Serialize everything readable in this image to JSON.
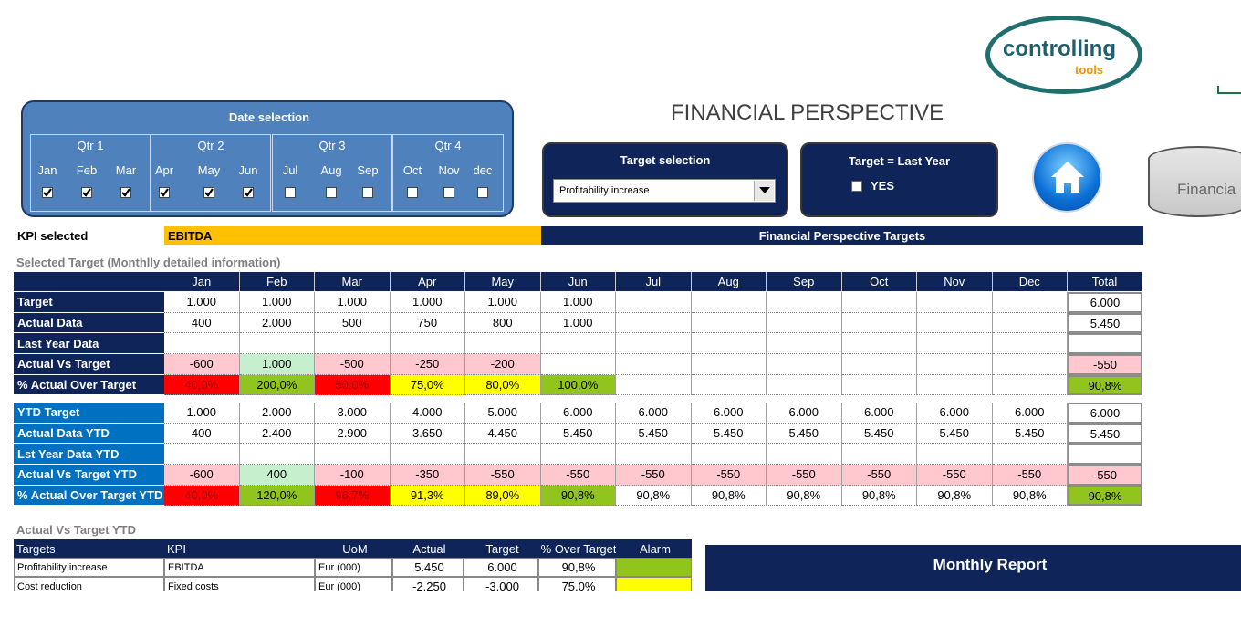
{
  "logo": {
    "name": "controlling",
    "sub": "tools"
  },
  "title": "FINANCIAL PERSPECTIVE",
  "date_selection": {
    "title": "Date selection",
    "quarters": [
      "Qtr 1",
      "Qtr 2",
      "Qtr 3",
      "Qtr 4"
    ],
    "months": [
      "Jan",
      "Feb",
      "Mar",
      "Apr",
      "May",
      "Jun",
      "Jul",
      "Aug",
      "Sep",
      "Oct",
      "Nov",
      "dec"
    ],
    "checked": [
      true,
      true,
      true,
      true,
      true,
      true,
      false,
      false,
      false,
      false,
      false,
      false
    ]
  },
  "target_selection": {
    "title": "Target selection",
    "value": "Profitability increase"
  },
  "last_year": {
    "title": "Target = Last Year",
    "option": "YES",
    "checked": false
  },
  "nav_button": "Financia",
  "kpi": {
    "label": "KPI selected",
    "value": "EBITDA",
    "header": "Financial Perspective Targets"
  },
  "monthly": {
    "title": "Selected Target (Monthlly detailed information)",
    "columns": [
      "Jan",
      "Feb",
      "Mar",
      "Apr",
      "May",
      "Jun",
      "Jul",
      "Aug",
      "Sep",
      "Oct",
      "Nov",
      "Dec",
      "Total"
    ],
    "sections": [
      {
        "color": "#0f2458",
        "rows": [
          {
            "label": "Target",
            "cells": [
              "1.000",
              "1.000",
              "1.000",
              "1.000",
              "1.000",
              "1.000",
              null,
              null,
              null,
              null,
              null,
              null,
              "6.000"
            ]
          },
          {
            "label": "Actual Data",
            "cells": [
              "400",
              "2.000",
              "500",
              "750",
              "800",
              "1.000",
              null,
              null,
              null,
              null,
              null,
              null,
              "5.450"
            ]
          },
          {
            "label": "Last Year Data",
            "cells": [
              null,
              null,
              null,
              null,
              null,
              null,
              null,
              null,
              null,
              null,
              null,
              null,
              null
            ]
          },
          {
            "label": "Actual Vs Target",
            "cells": [
              "-600",
              "1.000",
              "-500",
              "-250",
              "-200",
              null,
              null,
              null,
              null,
              null,
              null,
              null,
              "-550"
            ],
            "fills": [
              "#ffc7ce",
              "#c6efce",
              "#ffc7ce",
              "#ffc7ce",
              "#ffc7ce",
              null,
              null,
              null,
              null,
              null,
              null,
              null,
              "#ffc7ce"
            ]
          },
          {
            "label": "% Actual Over Target",
            "cells": [
              "40,0%",
              "200,0%",
              "50,0%",
              "75,0%",
              "80,0%",
              "100,0%",
              null,
              null,
              null,
              null,
              null,
              null,
              "90,8%"
            ],
            "fills": [
              "#ff0000",
              "#92c41e",
              "#ff0000",
              "#ffff00",
              "#ffff00",
              "#92c41e",
              null,
              null,
              null,
              null,
              null,
              null,
              "#92c41e"
            ]
          }
        ]
      },
      {
        "color": "#0070c0",
        "rows": [
          {
            "label": "YTD Target",
            "cells": [
              "1.000",
              "2.000",
              "3.000",
              "4.000",
              "5.000",
              "6.000",
              "6.000",
              "6.000",
              "6.000",
              "6.000",
              "6.000",
              "6.000",
              "6.000"
            ]
          },
          {
            "label": "Actual Data YTD",
            "cells": [
              "400",
              "2.400",
              "2.900",
              "3.650",
              "4.450",
              "5.450",
              "5.450",
              "5.450",
              "5.450",
              "5.450",
              "5.450",
              "5.450",
              "5.450"
            ]
          },
          {
            "label": "Lst Year Data YTD",
            "cells": [
              null,
              null,
              null,
              null,
              null,
              null,
              null,
              null,
              null,
              null,
              null,
              null,
              null
            ]
          },
          {
            "label": "Actual Vs Target YTD",
            "cells": [
              "-600",
              "400",
              "-100",
              "-350",
              "-550",
              "-550",
              "-550",
              "-550",
              "-550",
              "-550",
              "-550",
              "-550",
              "-550"
            ],
            "fills": [
              "#ffc7ce",
              "#c6efce",
              "#ffc7ce",
              "#ffc7ce",
              "#ffc7ce",
              "#ffc7ce",
              "#ffc7ce",
              "#ffc7ce",
              "#ffc7ce",
              "#ffc7ce",
              "#ffc7ce",
              "#ffc7ce",
              "#ffc7ce"
            ]
          },
          {
            "label": "% Actual Over Target YTD",
            "cells": [
              "40,0%",
              "120,0%",
              "96,7%",
              "91,3%",
              "89,0%",
              "90,8%",
              "90,8%",
              "90,8%",
              "90,8%",
              "90,8%",
              "90,8%",
              "90,8%",
              "90,8%"
            ],
            "fills": [
              "#ff0000",
              "#92c41e",
              "#ff0000",
              "#ffff00",
              "#ffff00",
              "#92c41e",
              null,
              null,
              null,
              null,
              null,
              null,
              "#92c41e"
            ]
          }
        ]
      }
    ]
  },
  "ytd_summary": {
    "title": "Actual Vs Target YTD",
    "columns": [
      "Targets",
      "KPI",
      "UoM",
      "Actual",
      "Target",
      "% Over Target",
      "Alarm"
    ],
    "rows": [
      {
        "cells": [
          "Profitability increase",
          "EBITDA",
          "Eur (000)",
          "5.450",
          "6.000",
          "90,8%"
        ],
        "alarm": "#92c41e"
      },
      {
        "cells": [
          "Cost reduction",
          "Fixed costs",
          "Eur (000)",
          "-2.250",
          "-3.000",
          "75,0%"
        ],
        "alarm": "#ffff00"
      }
    ]
  },
  "report": {
    "title": "Monthly Report"
  }
}
